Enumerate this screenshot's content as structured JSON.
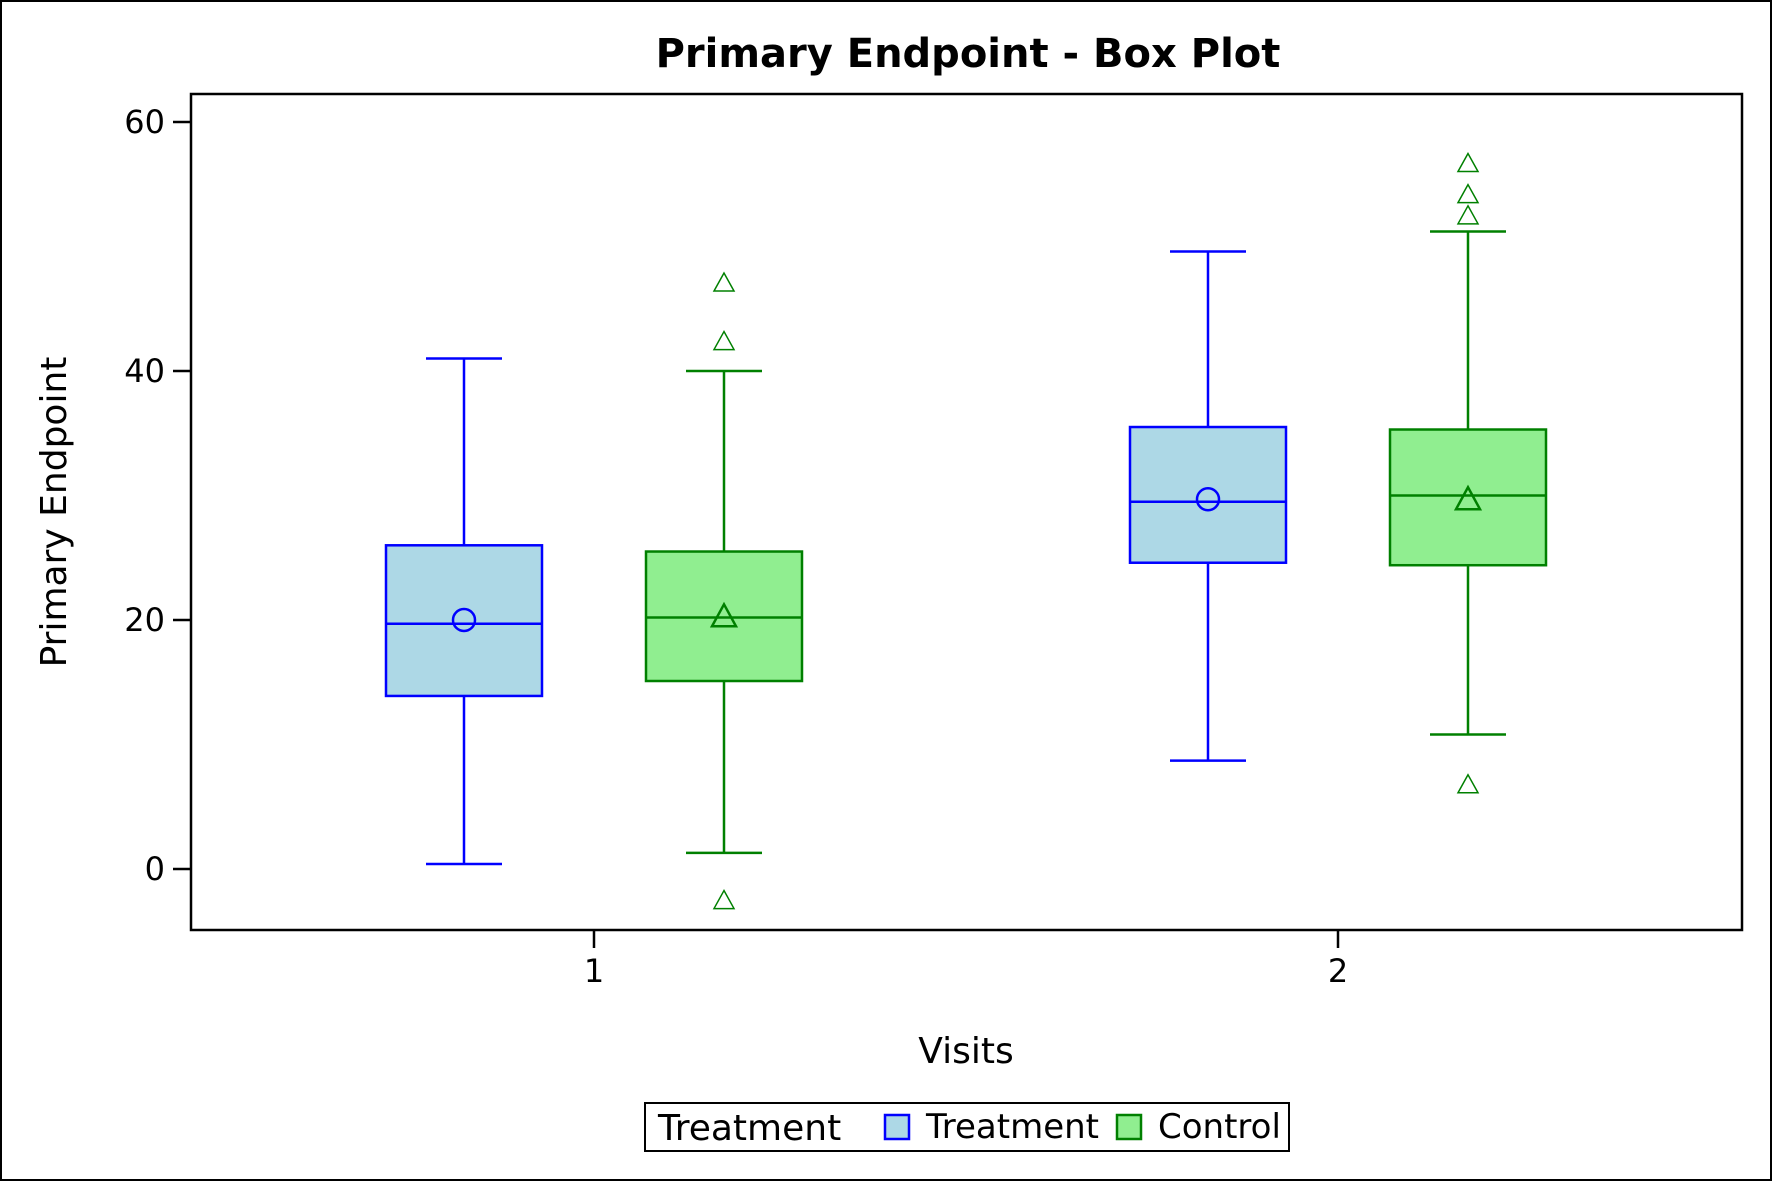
{
  "chart_data": {
    "type": "box",
    "title": "Primary Endpoint - Box Plot",
    "xlabel": "Visits",
    "ylabel": "Primary Endpoint",
    "categories": [
      "1",
      "2"
    ],
    "ylim": [
      -5,
      62
    ],
    "yticks": [
      0,
      20,
      40,
      60
    ],
    "grid": false,
    "legend": {
      "title": "Treatment",
      "placement": "bottom-center",
      "entries": [
        "Treatment",
        "Control"
      ]
    },
    "series": [
      {
        "name": "Treatment",
        "fill": "#add8e6",
        "stroke": "#0000ff",
        "mean_marker": "circle",
        "boxes": [
          {
            "category": "1",
            "whisker_low": 0.4,
            "q1": 13.9,
            "median": 19.7,
            "q3": 26.0,
            "whisker_high": 41.0,
            "mean": 20.0,
            "outliers": []
          },
          {
            "category": "2",
            "whisker_low": 8.7,
            "q1": 24.6,
            "median": 29.5,
            "q3": 35.5,
            "whisker_high": 49.6,
            "mean": 29.7,
            "outliers": []
          }
        ]
      },
      {
        "name": "Control",
        "fill": "#90ee90",
        "stroke": "#008000",
        "mean_marker": "triangle",
        "boxes": [
          {
            "category": "1",
            "whisker_low": 1.3,
            "q1": 15.1,
            "median": 20.2,
            "q3": 25.5,
            "whisker_high": 40.0,
            "mean": 20.2,
            "outliers": [
              47.0,
              42.3,
              -2.6
            ]
          },
          {
            "category": "2",
            "whisker_low": 10.8,
            "q1": 24.4,
            "median": 30.0,
            "q3": 35.3,
            "whisker_high": 51.2,
            "mean": 29.6,
            "outliers": [
              56.6,
              54.1,
              52.4,
              6.7
            ]
          }
        ]
      }
    ]
  }
}
